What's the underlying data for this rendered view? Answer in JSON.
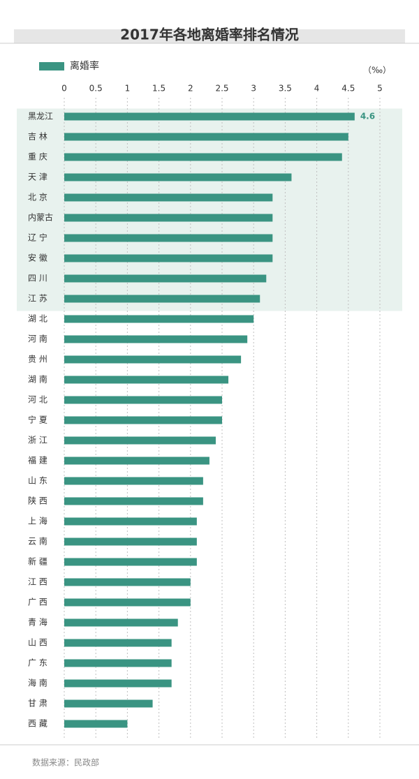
{
  "chart_data": {
    "type": "bar",
    "orientation": "horizontal",
    "title": "2017年各地离婚率排名情况",
    "unit": "（‰）",
    "legend": [
      "离婚率"
    ],
    "legend_placement": "top-left",
    "x_ticks": [
      "0",
      "0.5",
      "1",
      "1.5",
      "2",
      "2.5",
      "3",
      "3.5",
      "4",
      "4.5",
      "5"
    ],
    "xlim": [
      0,
      5
    ],
    "grid": true,
    "categories": [
      "黑龙江",
      "吉 林",
      "重 庆",
      "天 津",
      "北 京",
      "内蒙古",
      "辽 宁",
      "安 徽",
      "四 川",
      "江 苏",
      "湖 北",
      "河 南",
      "贵 州",
      "湖 南",
      "河 北",
      "宁 夏",
      "浙 江",
      "福 建",
      "山 东",
      "陕 西",
      "上 海",
      "云 南",
      "新 疆",
      "江 西",
      "广 西",
      "青 海",
      "山 西",
      "广 东",
      "海 南",
      "甘 肃",
      "西 藏"
    ],
    "values": [
      4.6,
      4.5,
      4.4,
      3.6,
      3.3,
      3.3,
      3.3,
      3.3,
      3.2,
      3.1,
      3.0,
      2.9,
      2.8,
      2.6,
      2.5,
      2.5,
      2.4,
      2.3,
      2.2,
      2.2,
      2.1,
      2.1,
      2.1,
      2.0,
      2.0,
      1.8,
      1.7,
      1.7,
      1.7,
      1.4,
      1.0
    ],
    "data_labels": [
      "4.6"
    ],
    "highlight_top_n": 10
  },
  "source": "数据来源：民政部",
  "colors": {
    "bar": "#3a9482",
    "highlight_bg": "#e8f2ee",
    "grid": "#bfbfbf",
    "title_bg": "#e6e6e6",
    "value_label": "#3a9482"
  }
}
